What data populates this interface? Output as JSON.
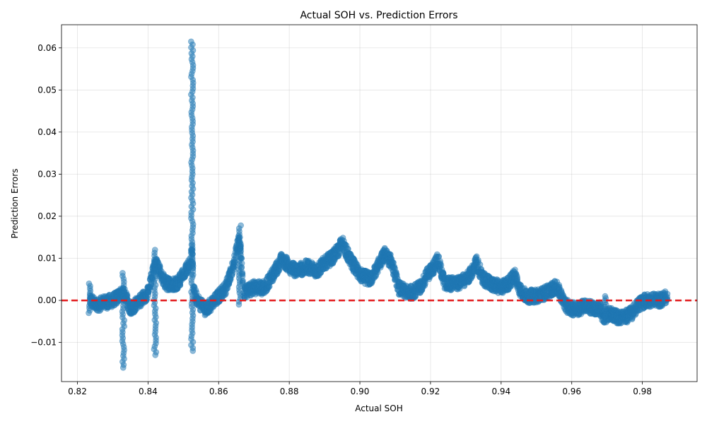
{
  "chart_data": {
    "type": "scatter",
    "title": "Actual SOH vs. Prediction Errors",
    "xlabel": "Actual SOH",
    "ylabel": "Prediction Errors",
    "xlim": [
      0.8155,
      0.9955
    ],
    "ylim": [
      -0.0193,
      0.0655
    ],
    "xticks": [
      0.82,
      0.84,
      0.86,
      0.88,
      0.9,
      0.92,
      0.94,
      0.96,
      0.98
    ],
    "xtick_labels": [
      "0.82",
      "0.84",
      "0.86",
      "0.88",
      "0.90",
      "0.92",
      "0.94",
      "0.96",
      "0.98"
    ],
    "yticks": [
      -0.01,
      0.0,
      0.01,
      0.02,
      0.03,
      0.04,
      0.05,
      0.06
    ],
    "ytick_labels": [
      "−0.01",
      "0.00",
      "0.01",
      "0.02",
      "0.03",
      "0.04",
      "0.05",
      "0.06"
    ],
    "grid": true,
    "point_color": "#1f77b4",
    "point_alpha": 0.5,
    "reference_line": {
      "y": 0.0,
      "color": "#e41a1c",
      "style": "dashed"
    },
    "series_profile": {
      "x": [
        0.8235,
        0.826,
        0.83,
        0.833,
        0.835,
        0.838,
        0.84,
        0.842,
        0.845,
        0.848,
        0.85,
        0.852,
        0.8525,
        0.853,
        0.854,
        0.856,
        0.858,
        0.86,
        0.862,
        0.864,
        0.866,
        0.867,
        0.87,
        0.873,
        0.876,
        0.878,
        0.88,
        0.882,
        0.885,
        0.888,
        0.89,
        0.892,
        0.894,
        0.895,
        0.897,
        0.9,
        0.903,
        0.905,
        0.907,
        0.909,
        0.911,
        0.913,
        0.915,
        0.917,
        0.919,
        0.921,
        0.922,
        0.924,
        0.926,
        0.928,
        0.93,
        0.932,
        0.933,
        0.935,
        0.937,
        0.94,
        0.942,
        0.944,
        0.945,
        0.947,
        0.95,
        0.953,
        0.955,
        0.956,
        0.958,
        0.96,
        0.962,
        0.964,
        0.966,
        0.968,
        0.969,
        0.971,
        0.973,
        0.975,
        0.977,
        0.979,
        0.981,
        0.983,
        0.985,
        0.987
      ],
      "y": [
        0.0,
        -0.001,
        0.0,
        0.002,
        -0.002,
        0.0,
        0.002,
        0.009,
        0.004,
        0.004,
        0.006,
        0.009,
        0.013,
        0.002,
        0.0,
        -0.002,
        -0.001,
        0.001,
        0.003,
        0.008,
        0.015,
        0.002,
        0.003,
        0.003,
        0.007,
        0.01,
        0.008,
        0.007,
        0.008,
        0.007,
        0.009,
        0.01,
        0.012,
        0.014,
        0.01,
        0.006,
        0.005,
        0.008,
        0.011,
        0.009,
        0.003,
        0.002,
        0.002,
        0.003,
        0.006,
        0.008,
        0.01,
        0.004,
        0.004,
        0.004,
        0.005,
        0.007,
        0.009,
        0.005,
        0.004,
        0.003,
        0.004,
        0.006,
        0.003,
        0.001,
        0.001,
        0.002,
        0.003,
        0.003,
        -0.001,
        -0.002,
        -0.002,
        -0.001,
        -0.002,
        -0.002,
        -0.004,
        -0.003,
        -0.004,
        -0.004,
        -0.003,
        -0.001,
        0.0,
        0.0,
        0.0,
        0.001
      ]
    },
    "spikes": [
      {
        "x": 0.8235,
        "ymin": -0.003,
        "ymax": 0.004
      },
      {
        "x": 0.833,
        "ymin": -0.016,
        "ymax": 0.0065
      },
      {
        "x": 0.842,
        "ymin": -0.013,
        "ymax": 0.012
      },
      {
        "x": 0.8525,
        "ymin": -0.012,
        "ymax": 0.0615
      },
      {
        "x": 0.866,
        "ymin": -0.001,
        "ymax": 0.0178
      },
      {
        "x": 0.9695,
        "ymin": -0.005,
        "ymax": 0.001
      }
    ]
  }
}
